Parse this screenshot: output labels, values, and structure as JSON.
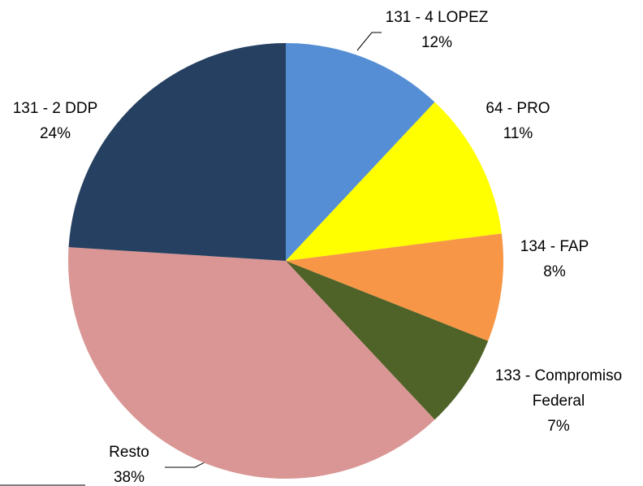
{
  "chart_data": {
    "type": "pie",
    "categories": [
      "131 - 4 LOPEZ",
      "64 - PRO",
      "134 - FAP",
      "133 - Compromiso Federal",
      "Resto",
      "131 - 2 DDP"
    ],
    "values": [
      12,
      11,
      8,
      7,
      38,
      24
    ],
    "value_labels": [
      "12%",
      "11%",
      "8%",
      "7%",
      "38%",
      "24%"
    ],
    "colors": [
      "#558ed5",
      "#ffff00",
      "#f79646",
      "#4f6228",
      "#d99694",
      "#254061"
    ]
  }
}
